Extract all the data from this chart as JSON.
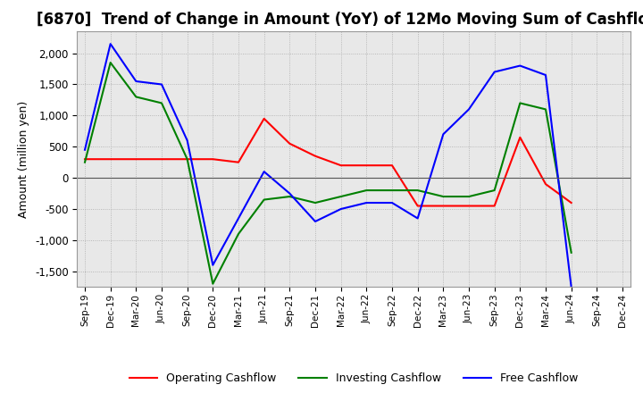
{
  "title": "[6870]  Trend of Change in Amount (YoY) of 12Mo Moving Sum of Cashflows",
  "ylabel": "Amount (million yen)",
  "x_labels": [
    "Sep-19",
    "Dec-19",
    "Mar-20",
    "Jun-20",
    "Sep-20",
    "Dec-20",
    "Mar-21",
    "Jun-21",
    "Sep-21",
    "Dec-21",
    "Mar-22",
    "Jun-22",
    "Sep-22",
    "Dec-22",
    "Mar-23",
    "Jun-23",
    "Sep-23",
    "Dec-23",
    "Mar-24",
    "Jun-24",
    "Sep-24",
    "Dec-24"
  ],
  "operating": [
    300,
    300,
    300,
    300,
    300,
    300,
    250,
    950,
    550,
    350,
    200,
    200,
    200,
    -450,
    -450,
    -450,
    -450,
    650,
    -100,
    -400,
    null,
    null
  ],
  "investing": [
    250,
    1850,
    1300,
    1200,
    300,
    -1700,
    -900,
    -350,
    -300,
    -400,
    -300,
    -200,
    -200,
    -200,
    -300,
    -300,
    -200,
    1200,
    1100,
    -1200,
    null,
    null
  ],
  "free": [
    450,
    2150,
    1550,
    1500,
    600,
    -1400,
    -650,
    100,
    -250,
    -700,
    -500,
    -400,
    -400,
    -650,
    700,
    1100,
    1700,
    1800,
    1650,
    -1750,
    null,
    null
  ],
  "ylim": [
    -1750,
    2350
  ],
  "yticks": [
    -1500,
    -1000,
    -500,
    0,
    500,
    1000,
    1500,
    2000
  ],
  "colors": {
    "operating": "#ff0000",
    "investing": "#008000",
    "free": "#0000ff"
  },
  "legend_labels": [
    "Operating Cashflow",
    "Investing Cashflow",
    "Free Cashflow"
  ],
  "background_color": "#ffffff",
  "grid_color": "#aaaaaa",
  "title_fontsize": 12,
  "label_fontsize": 9
}
